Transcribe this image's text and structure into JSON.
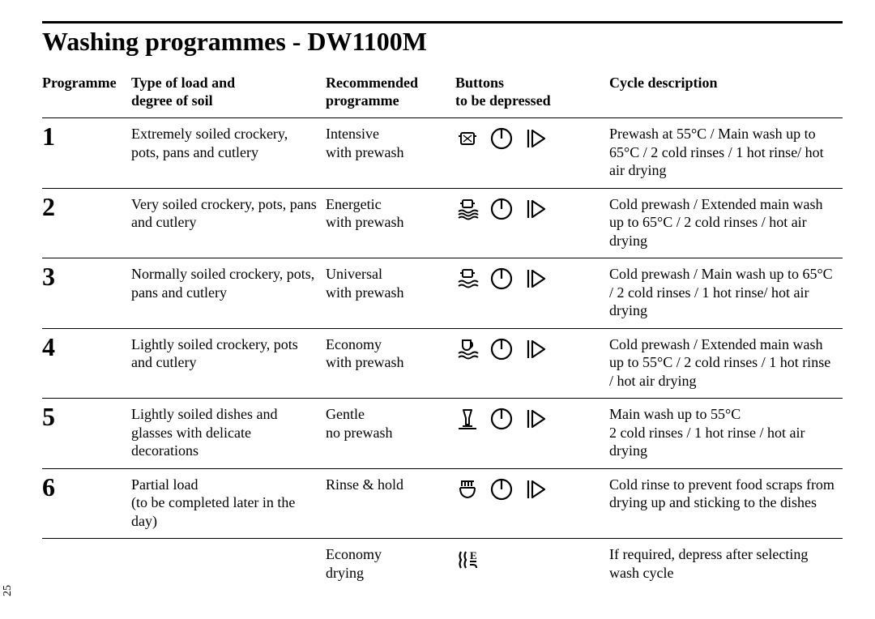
{
  "page": {
    "title": "Washing programmes - DW1100M",
    "page_number": "25",
    "colors": {
      "ink": "#000000",
      "paper": "#ffffff"
    },
    "typography": {
      "title_fontsize_pt": 24,
      "body_fontsize_pt": 13,
      "number_fontsize_pt": 24,
      "font_family": "Times New Roman (serif)"
    }
  },
  "columns": {
    "programme": "Programme",
    "load": "Type of load and\ndegree of soil",
    "recommended": "Recommended\nprogramme",
    "buttons": "Buttons\nto be depressed",
    "cycle": "Cycle description"
  },
  "icon_legend": {
    "power": "power-on circle with vertical bar",
    "start": "start / play triangle with bar",
    "pot": "pot / intensive",
    "waves3": "pot over triple waves / energetic",
    "waves2": "pot over double waves / universal",
    "cup_waves": "cup over waves / economy",
    "glass": "glass / gentle",
    "rinse": "shower / rinse & hold",
    "eco_dry": "heat waves with E / economy drying"
  },
  "rows": [
    {
      "number": "1",
      "load": "Extremely soiled crockery, pots, pans and cutlery",
      "recommended": "Intensive\nwith prewash",
      "icons": [
        "pot",
        "power",
        "start"
      ],
      "cycle": "Prewash at 55°C / Main wash up to 65°C / 2 cold rinses / 1 hot rinse/ hot air drying"
    },
    {
      "number": "2",
      "load": "Very soiled crockery, pots, pans and cutlery",
      "recommended": "Energetic\nwith prewash",
      "icons": [
        "waves3",
        "power",
        "start"
      ],
      "cycle": "Cold prewash / Extended main wash up to 65°C / 2 cold rinses / hot air drying"
    },
    {
      "number": "3",
      "load": "Normally soiled crockery, pots, pans and cutlery",
      "recommended": "Universal\nwith prewash",
      "icons": [
        "waves2",
        "power",
        "start"
      ],
      "cycle": "Cold prewash / Main wash up to 65°C / 2 cold rinses / 1 hot rinse/ hot air drying"
    },
    {
      "number": "4",
      "load": "Lightly soiled crockery, pots and cutlery",
      "recommended": "Economy\nwith prewash",
      "icons": [
        "cup_waves",
        "power",
        "start"
      ],
      "cycle": "Cold prewash / Extended main wash up to 55°C / 2 cold rinses / 1 hot rinse / hot air drying"
    },
    {
      "number": "5",
      "load": "Lightly soiled dishes and glasses with delicate decorations",
      "recommended": "Gentle\nno prewash",
      "icons": [
        "glass",
        "power",
        "start"
      ],
      "cycle": "Main wash up to 55°C\n2 cold rinses / 1 hot rinse / hot air drying"
    },
    {
      "number": "6",
      "load": "Partial load\n(to be completed later in the day)",
      "recommended": "Rinse & hold",
      "icons": [
        "rinse",
        "power",
        "start"
      ],
      "cycle": "Cold rinse to prevent food scraps from drying up and sticking to the dishes"
    },
    {
      "number": "",
      "load": "",
      "recommended": "Economy\ndrying",
      "icons": [
        "eco_dry"
      ],
      "cycle": "If required, depress after selecting wash cycle"
    }
  ]
}
